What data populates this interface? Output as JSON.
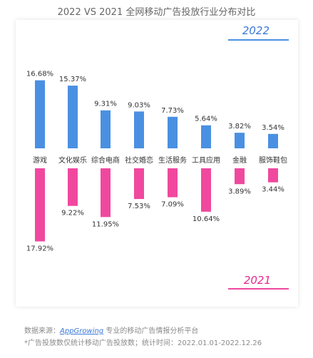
{
  "title": "2022 VS 2021 全网移动广告投放行业分布对比",
  "colors": {
    "top": "#4A90E2",
    "bottom": "#F0489F",
    "label_top": "#3B78D8",
    "label_bottom": "#E6288A"
  },
  "chart_data": {
    "type": "bar",
    "categories": [
      "游戏",
      "文化娱乐",
      "综合电商",
      "社交婚恋",
      "生活服务",
      "工具应用",
      "金融",
      "服饰鞋包"
    ],
    "series": [
      {
        "name": "2022",
        "values": [
          16.68,
          15.37,
          9.31,
          9.03,
          7.73,
          5.64,
          3.82,
          3.54
        ],
        "labels": [
          "16.68%",
          "15.37%",
          "9.31%",
          "9.03%",
          "7.73%",
          "5.64%",
          "3.82%",
          "3.54%"
        ],
        "position": "top-right"
      },
      {
        "name": "2021",
        "values": [
          17.92,
          9.22,
          11.95,
          7.53,
          7.09,
          10.64,
          3.89,
          3.44
        ],
        "labels": [
          "17.92%",
          "9.22%",
          "11.95%",
          "7.53%",
          "7.09%",
          "10.64%",
          "3.89%",
          "3.44%"
        ],
        "position": "bottom-right"
      }
    ],
    "grid": false
  },
  "footer": {
    "source_prefix": "数据来源：",
    "source_brand": "AppGrowing",
    "source_suffix": " 专业的移动广告情报分析平台",
    "note": "*广告投放数仅统计移动广告投放数；统计时间：2022.01.01-2022.12.26"
  }
}
